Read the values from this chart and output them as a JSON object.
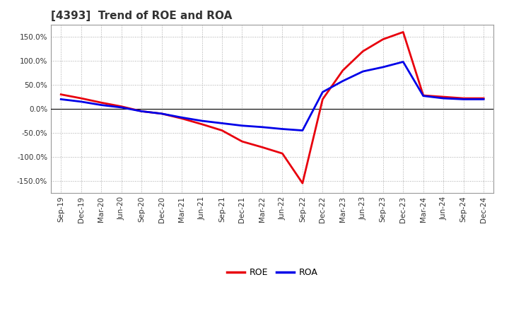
{
  "title": "[4393]  Trend of ROE and ROA",
  "x_labels": [
    "Sep-19",
    "Dec-19",
    "Mar-20",
    "Jun-20",
    "Sep-20",
    "Dec-20",
    "Mar-21",
    "Jun-21",
    "Sep-21",
    "Dec-21",
    "Mar-22",
    "Jun-22",
    "Sep-22",
    "Dec-22",
    "Mar-23",
    "Jun-23",
    "Sep-23",
    "Dec-23",
    "Mar-24",
    "Jun-24",
    "Sep-24",
    "Dec-24"
  ],
  "roe": [
    30.0,
    22.0,
    13.0,
    5.0,
    -5.0,
    -10.0,
    -20.0,
    -32.0,
    -45.0,
    -68.0,
    -80.0,
    -93.0,
    -155.0,
    20.0,
    80.0,
    120.0,
    145.0,
    160.0,
    28.0,
    25.0,
    22.0,
    22.0
  ],
  "roa": [
    20.0,
    15.0,
    8.0,
    3.0,
    -5.0,
    -10.0,
    -18.0,
    -25.0,
    -30.0,
    -35.0,
    -38.0,
    -42.0,
    -45.0,
    35.0,
    58.0,
    78.0,
    87.0,
    98.0,
    27.0,
    22.0,
    20.0,
    20.0
  ],
  "roe_color": "#e8000d",
  "roa_color": "#0000e8",
  "background_color": "#ffffff",
  "grid_color": "#aaaaaa",
  "ylim": [
    -175,
    175
  ],
  "yticks": [
    -150,
    -100,
    -50,
    0,
    50,
    100,
    150
  ],
  "line_width": 2.0,
  "title_fontsize": 11,
  "tick_fontsize": 7.5,
  "legend_fontsize": 9,
  "title_color": "#333333",
  "tick_color": "#333333"
}
